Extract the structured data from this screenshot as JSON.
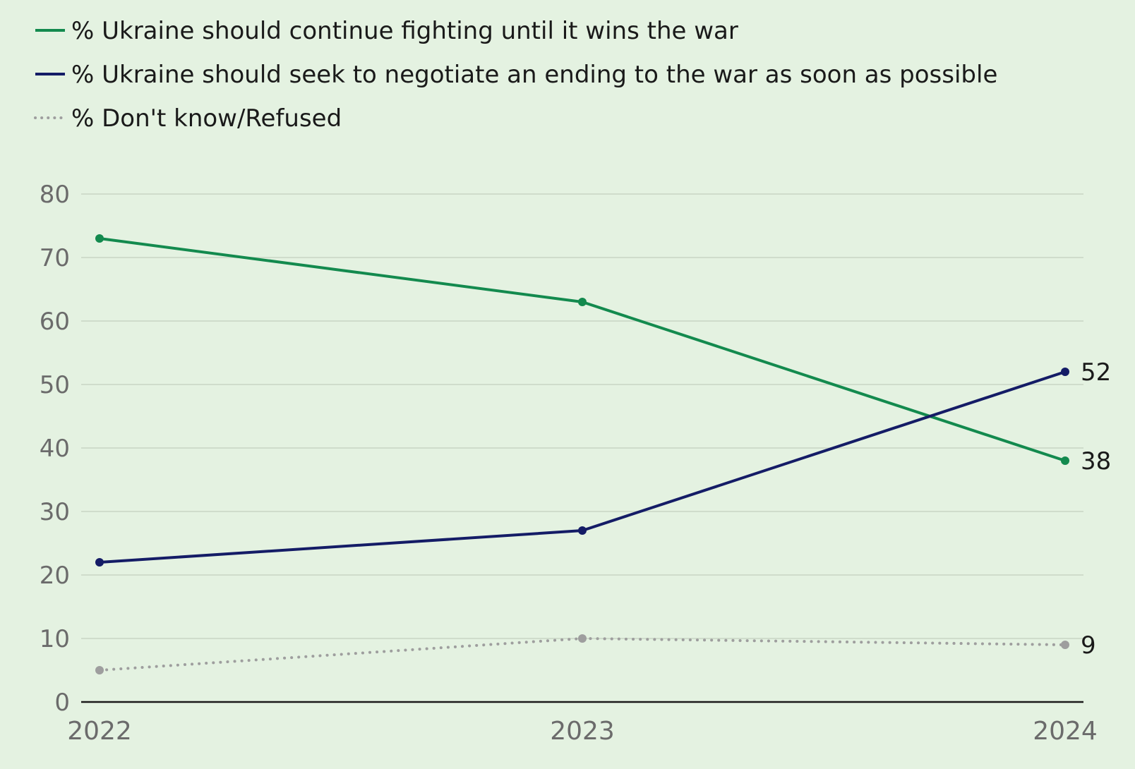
{
  "colors": {
    "background": "#e4f2e1",
    "gridline": "#cfdccb",
    "axis": "#1a1a1a",
    "tick_text": "#6b6b6b",
    "label_text": "#1a1a1a"
  },
  "chart_data": {
    "type": "line",
    "title": "",
    "xlabel": "",
    "ylabel": "",
    "x": [
      "2022",
      "2023",
      "2024"
    ],
    "ylim": [
      0,
      80
    ],
    "yticks": [
      "0",
      "10",
      "20",
      "30",
      "40",
      "50",
      "60",
      "70",
      "80"
    ],
    "grid": true,
    "legend": "top-left",
    "series": [
      {
        "name": "% Ukraine should continue fighting until it wins the war",
        "values": [
          73,
          63,
          38
        ],
        "color": "#138a4e",
        "style": "solid",
        "end_label": "38"
      },
      {
        "name": "% Ukraine should seek to negotiate an ending to the war as soon as possible",
        "values": [
          22,
          27,
          52
        ],
        "color": "#141c66",
        "style": "solid",
        "end_label": "52"
      },
      {
        "name": "% Don't know/Refused",
        "values": [
          5,
          10,
          9
        ],
        "color": "#9e9e9e",
        "style": "dotted",
        "end_label": "9"
      }
    ]
  }
}
